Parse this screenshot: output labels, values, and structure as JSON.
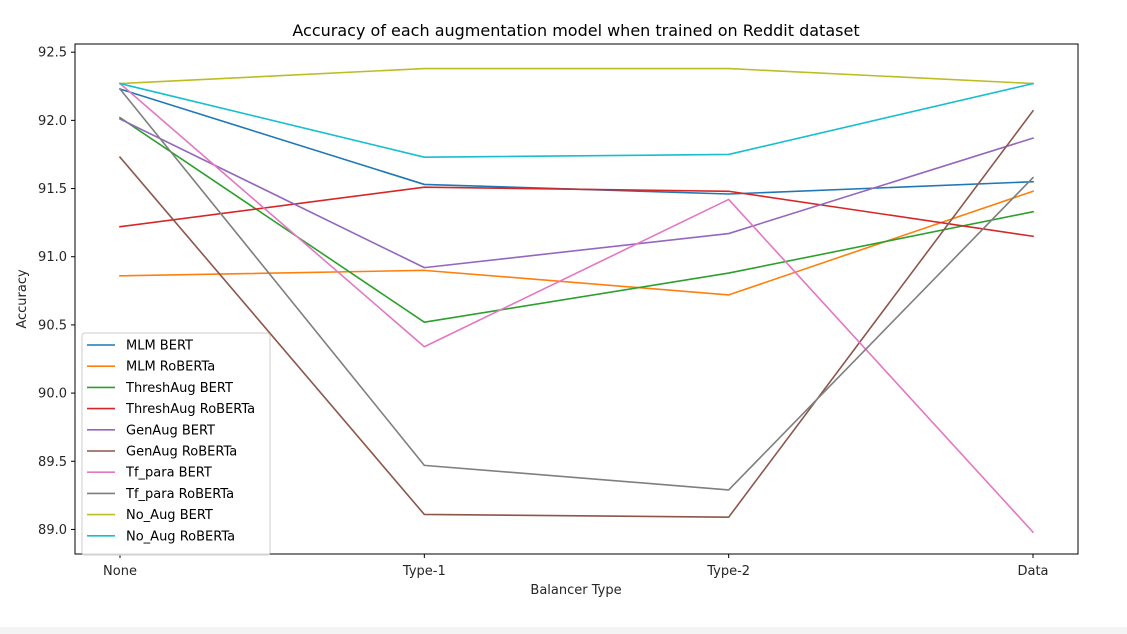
{
  "chart_data": {
    "type": "line",
    "title": "Accuracy of each augmentation model when trained on Reddit dataset",
    "xlabel": "Balancer Type",
    "ylabel": "Accuracy",
    "categories": [
      "None",
      "Type-1",
      "Type-2",
      "Data"
    ],
    "ylim": [
      88.82,
      92.56
    ],
    "yticks": [
      89.0,
      89.5,
      90.0,
      90.5,
      91.0,
      91.5,
      92.0,
      92.5
    ],
    "ytick_labels": [
      "89.0",
      "89.5",
      "90.0",
      "90.5",
      "91.0",
      "91.5",
      "92.0",
      "92.5"
    ],
    "grid": false,
    "legend_position": "lower-left",
    "series": [
      {
        "name": "MLM BERT",
        "color": "#1f77b4",
        "values": [
          92.23,
          91.53,
          91.46,
          91.55
        ]
      },
      {
        "name": "MLM RoBERTa",
        "color": "#ff7f0e",
        "values": [
          90.86,
          90.9,
          90.72,
          91.48
        ]
      },
      {
        "name": "ThreshAug BERT",
        "color": "#2ca02c",
        "values": [
          92.02,
          90.52,
          90.88,
          91.33
        ]
      },
      {
        "name": "ThreshAug RoBERTa",
        "color": "#d62728",
        "values": [
          91.22,
          91.51,
          91.48,
          91.15
        ]
      },
      {
        "name": "GenAug BERT",
        "color": "#9467bd",
        "values": [
          92.01,
          90.92,
          91.17,
          91.87
        ]
      },
      {
        "name": "GenAug RoBERTa",
        "color": "#8c564b",
        "values": [
          91.73,
          89.11,
          89.09,
          92.07
        ]
      },
      {
        "name": "Tf_para BERT",
        "color": "#e377c2",
        "values": [
          92.27,
          90.34,
          91.42,
          88.98
        ]
      },
      {
        "name": "Tf_para RoBERTa",
        "color": "#7f7f7f",
        "values": [
          92.23,
          89.47,
          89.29,
          91.58
        ]
      },
      {
        "name": "No_Aug BERT",
        "color": "#bcbd22",
        "values": [
          92.27,
          92.38,
          92.38,
          92.27
        ]
      },
      {
        "name": "No_Aug RoBERTa",
        "color": "#17becf",
        "values": [
          92.27,
          91.73,
          91.75,
          92.27
        ]
      }
    ]
  }
}
